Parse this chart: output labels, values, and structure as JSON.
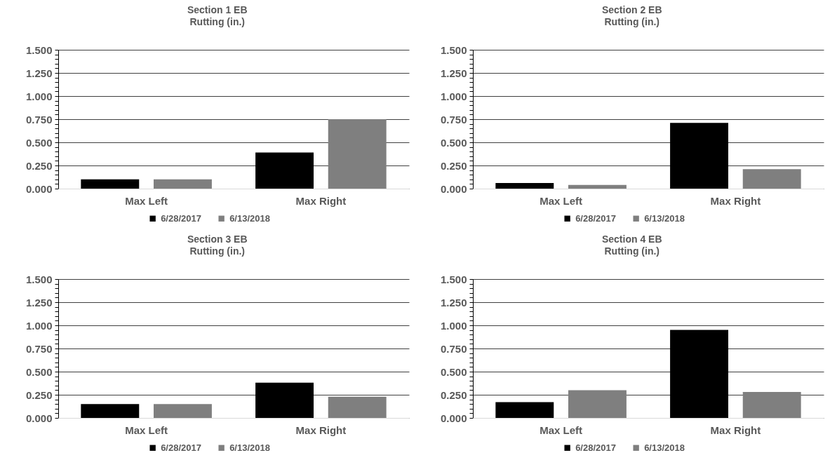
{
  "chart_data": [
    {
      "type": "bar",
      "title": "Section 1 EB",
      "subtitle": "Rutting (in.)",
      "categories": [
        "Max Left",
        "Max Right"
      ],
      "series": [
        {
          "name": "6/28/2017",
          "color": "#000000",
          "values": [
            0.1,
            0.39
          ]
        },
        {
          "name": "6/13/2018",
          "color": "#7f7f7f",
          "values": [
            0.1,
            0.75
          ]
        }
      ],
      "ylim": [
        0,
        1.5
      ],
      "yticks": [
        {
          "value": 0,
          "label": "0.000"
        },
        {
          "value": 0.05,
          "label": null
        },
        {
          "value": 0.1,
          "label": null
        },
        {
          "value": 0.15,
          "label": null
        },
        {
          "value": 0.2,
          "label": null
        },
        {
          "value": 0.25,
          "label": "0.250"
        },
        {
          "value": 0.3,
          "label": null
        },
        {
          "value": 0.35,
          "label": null
        },
        {
          "value": 0.4,
          "label": null
        },
        {
          "value": 0.45,
          "label": null
        },
        {
          "value": 0.5,
          "label": "0.500"
        },
        {
          "value": 0.55,
          "label": null
        },
        {
          "value": 0.6,
          "label": null
        },
        {
          "value": 0.65,
          "label": null
        },
        {
          "value": 0.7,
          "label": null
        },
        {
          "value": 0.75,
          "label": "0.750"
        },
        {
          "value": 0.8,
          "label": null
        },
        {
          "value": 0.85,
          "label": null
        },
        {
          "value": 0.9,
          "label": null
        },
        {
          "value": 0.95,
          "label": null
        },
        {
          "value": 1.0,
          "label": "1.000"
        },
        {
          "value": 1.05,
          "label": null
        },
        {
          "value": 1.1,
          "label": null
        },
        {
          "value": 1.15,
          "label": null
        },
        {
          "value": 1.2,
          "label": null
        },
        {
          "value": 1.25,
          "label": "1.250"
        },
        {
          "value": 1.3,
          "label": null
        },
        {
          "value": 1.35,
          "label": null
        },
        {
          "value": 1.4,
          "label": null
        },
        {
          "value": 1.45,
          "label": null
        },
        {
          "value": 1.5,
          "label": "1.500"
        }
      ],
      "grid": "y",
      "legend": "bottom"
    },
    {
      "type": "bar",
      "title": "Section 2 EB",
      "subtitle": "Rutting (in.)",
      "categories": [
        "Max Left",
        "Max Right"
      ],
      "series": [
        {
          "name": "6/28/2017",
          "color": "#000000",
          "values": [
            0.06,
            0.71
          ]
        },
        {
          "name": "6/13/2018",
          "color": "#7f7f7f",
          "values": [
            0.04,
            0.21
          ]
        }
      ],
      "ylim": [
        0,
        1.5
      ],
      "yticks": [
        {
          "value": 0,
          "label": "0.000"
        },
        {
          "value": 0.05,
          "label": null
        },
        {
          "value": 0.1,
          "label": null
        },
        {
          "value": 0.15,
          "label": null
        },
        {
          "value": 0.2,
          "label": null
        },
        {
          "value": 0.25,
          "label": "0.250"
        },
        {
          "value": 0.3,
          "label": null
        },
        {
          "value": 0.35,
          "label": null
        },
        {
          "value": 0.4,
          "label": null
        },
        {
          "value": 0.45,
          "label": null
        },
        {
          "value": 0.5,
          "label": "0.500"
        },
        {
          "value": 0.55,
          "label": null
        },
        {
          "value": 0.6,
          "label": null
        },
        {
          "value": 0.65,
          "label": null
        },
        {
          "value": 0.7,
          "label": null
        },
        {
          "value": 0.75,
          "label": "0.750"
        },
        {
          "value": 0.8,
          "label": null
        },
        {
          "value": 0.85,
          "label": null
        },
        {
          "value": 0.9,
          "label": null
        },
        {
          "value": 0.95,
          "label": null
        },
        {
          "value": 1.0,
          "label": "1.000"
        },
        {
          "value": 1.05,
          "label": null
        },
        {
          "value": 1.1,
          "label": null
        },
        {
          "value": 1.15,
          "label": null
        },
        {
          "value": 1.2,
          "label": null
        },
        {
          "value": 1.25,
          "label": "1.250"
        },
        {
          "value": 1.3,
          "label": null
        },
        {
          "value": 1.35,
          "label": null
        },
        {
          "value": 1.4,
          "label": null
        },
        {
          "value": 1.45,
          "label": null
        },
        {
          "value": 1.5,
          "label": "1.500"
        }
      ],
      "grid": "y",
      "legend": "bottom"
    },
    {
      "type": "bar",
      "title": "Section 3 EB",
      "subtitle": "Rutting (in.)",
      "categories": [
        "Max Left",
        "Max Right"
      ],
      "series": [
        {
          "name": "6/28/2017",
          "color": "#000000",
          "values": [
            0.15,
            0.38
          ]
        },
        {
          "name": "6/13/2018",
          "color": "#7f7f7f",
          "values": [
            0.15,
            0.23
          ]
        }
      ],
      "ylim": [
        0,
        1.5
      ],
      "yticks": [
        {
          "value": 0,
          "label": "0.000"
        },
        {
          "value": 0.05,
          "label": null
        },
        {
          "value": 0.1,
          "label": null
        },
        {
          "value": 0.15,
          "label": null
        },
        {
          "value": 0.2,
          "label": null
        },
        {
          "value": 0.25,
          "label": "0.250"
        },
        {
          "value": 0.3,
          "label": null
        },
        {
          "value": 0.35,
          "label": null
        },
        {
          "value": 0.4,
          "label": null
        },
        {
          "value": 0.45,
          "label": null
        },
        {
          "value": 0.5,
          "label": "0.500"
        },
        {
          "value": 0.55,
          "label": null
        },
        {
          "value": 0.6,
          "label": null
        },
        {
          "value": 0.65,
          "label": null
        },
        {
          "value": 0.7,
          "label": null
        },
        {
          "value": 0.75,
          "label": "0.750"
        },
        {
          "value": 0.8,
          "label": null
        },
        {
          "value": 0.85,
          "label": null
        },
        {
          "value": 0.9,
          "label": null
        },
        {
          "value": 0.95,
          "label": null
        },
        {
          "value": 1.0,
          "label": "1.000"
        },
        {
          "value": 1.05,
          "label": null
        },
        {
          "value": 1.1,
          "label": null
        },
        {
          "value": 1.15,
          "label": null
        },
        {
          "value": 1.2,
          "label": null
        },
        {
          "value": 1.25,
          "label": "1.250"
        },
        {
          "value": 1.3,
          "label": null
        },
        {
          "value": 1.35,
          "label": null
        },
        {
          "value": 1.4,
          "label": null
        },
        {
          "value": 1.45,
          "label": null
        },
        {
          "value": 1.5,
          "label": "1.500"
        }
      ],
      "grid": "y",
      "legend": "bottom"
    },
    {
      "type": "bar",
      "title": "Section 4 EB",
      "subtitle": "Rutting (in.)",
      "categories": [
        "Max Left",
        "Max Right"
      ],
      "series": [
        {
          "name": "6/28/2017",
          "color": "#000000",
          "values": [
            0.17,
            0.95
          ]
        },
        {
          "name": "6/13/2018",
          "color": "#7f7f7f",
          "values": [
            0.3,
            0.28
          ]
        }
      ],
      "ylim": [
        0,
        1.5
      ],
      "yticks": [
        {
          "value": 0,
          "label": "0.000"
        },
        {
          "value": 0.05,
          "label": null
        },
        {
          "value": 0.1,
          "label": null
        },
        {
          "value": 0.15,
          "label": null
        },
        {
          "value": 0.2,
          "label": null
        },
        {
          "value": 0.25,
          "label": "0.250"
        },
        {
          "value": 0.3,
          "label": null
        },
        {
          "value": 0.35,
          "label": null
        },
        {
          "value": 0.4,
          "label": null
        },
        {
          "value": 0.45,
          "label": null
        },
        {
          "value": 0.5,
          "label": "0.500"
        },
        {
          "value": 0.55,
          "label": null
        },
        {
          "value": 0.6,
          "label": null
        },
        {
          "value": 0.65,
          "label": null
        },
        {
          "value": 0.7,
          "label": null
        },
        {
          "value": 0.75,
          "label": "0.750"
        },
        {
          "value": 0.8,
          "label": null
        },
        {
          "value": 0.85,
          "label": null
        },
        {
          "value": 0.9,
          "label": null
        },
        {
          "value": 0.95,
          "label": null
        },
        {
          "value": 1.0,
          "label": "1.000"
        },
        {
          "value": 1.05,
          "label": null
        },
        {
          "value": 1.1,
          "label": null
        },
        {
          "value": 1.15,
          "label": null
        },
        {
          "value": 1.2,
          "label": null
        },
        {
          "value": 1.25,
          "label": "1.250"
        },
        {
          "value": 1.3,
          "label": null
        },
        {
          "value": 1.35,
          "label": null
        },
        {
          "value": 1.4,
          "label": null
        },
        {
          "value": 1.45,
          "label": null
        },
        {
          "value": 1.5,
          "label": "1.500"
        }
      ],
      "grid": "y",
      "legend": "bottom"
    }
  ]
}
